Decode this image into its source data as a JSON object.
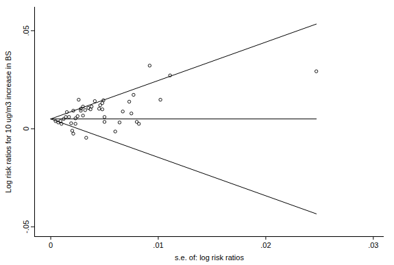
{
  "chart_data": {
    "type": "scatter",
    "x_label": "s.e. of: log risk ratios",
    "y_label": "Log risk ratios for 10 ug/m3 increase in BS",
    "xlim": [
      -0.0015,
      0.031
    ],
    "ylim": [
      -0.055,
      0.062
    ],
    "xticks": [
      0,
      {
        "value": 0.01,
        "label": ".01"
      },
      {
        "value": 0.02,
        "label": ".02"
      },
      {
        "value": 0.03,
        "label": ".03"
      }
    ],
    "yticks": [
      {
        "value": -0.05,
        "label": "-.05"
      },
      0,
      {
        "value": 0.05,
        "label": ".05"
      }
    ],
    "grid": false,
    "series": [
      {
        "type": "scatter",
        "marker": "circle_open",
        "color": "#000000",
        "x": [
          0.00045,
          0.0007,
          0.0009,
          0.001,
          0.0012,
          0.0014,
          0.0015,
          0.0017,
          0.0019,
          0.002,
          0.0021,
          0.0021,
          0.0023,
          0.0023,
          0.0025,
          0.0026,
          0.0028,
          0.0028,
          0.003,
          0.003,
          0.0032,
          0.0033,
          0.0035,
          0.0037,
          0.0038,
          0.0041,
          0.0045,
          0.0046,
          0.0048,
          0.0048,
          0.0049,
          0.005,
          0.005,
          0.006,
          0.0064,
          0.0067,
          0.0073,
          0.0075,
          0.0077,
          0.008,
          0.0082,
          0.0092,
          0.0102,
          0.0111,
          0.0247
        ],
        "values": [
          0.0039,
          0.0032,
          0.0039,
          0.0025,
          0.005,
          0.006,
          0.0085,
          0.006,
          0.0028,
          -0.001,
          -0.0025,
          0.0092,
          0.0053,
          0.0025,
          0.0064,
          0.0148,
          0.0102,
          0.0092,
          0.0113,
          0.0067,
          0.0095,
          -0.0046,
          0.0106,
          0.0099,
          0.0113,
          0.0141,
          0.0102,
          0.012,
          0.0099,
          0.0131,
          0.0145,
          0.006,
          0.0035,
          -0.0014,
          0.0032,
          0.0088,
          0.0138,
          0.0078,
          0.0173,
          0.0035,
          0.0025,
          0.0322,
          0.0148,
          0.0272,
          0.0293
        ]
      },
      {
        "type": "line",
        "line_style": "solid",
        "color": "#000000",
        "x": [
          0,
          0.0247
        ],
        "values": [
          0.005,
          0.0534
        ]
      },
      {
        "type": "line",
        "line_style": "solid",
        "color": "#000000",
        "x": [
          0,
          0.0247
        ],
        "values": [
          0.005,
          0.005
        ]
      },
      {
        "type": "line",
        "line_style": "solid",
        "color": "#000000",
        "x": [
          0,
          0.0247
        ],
        "values": [
          0.005,
          -0.0434
        ]
      }
    ]
  }
}
